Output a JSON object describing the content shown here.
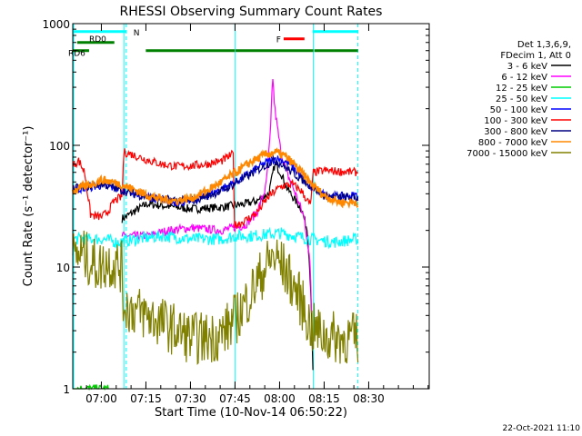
{
  "chart_data": {
    "type": "line",
    "title": "RHESSI Observing Summary Count Rates",
    "xlabel": "Start Time (10-Nov-14 06:50:22)",
    "ylabel": "Count Rate (s⁻¹ detector⁻¹)",
    "x_unit": "minutes since 06:50:22",
    "xlim": [
      0,
      120
    ],
    "ylim": [
      1,
      1000
    ],
    "yscale": "log",
    "x_ticks": [
      {
        "value": 9.63,
        "label": "07:00"
      },
      {
        "value": 24.63,
        "label": "07:15"
      },
      {
        "value": 39.63,
        "label": "07:30"
      },
      {
        "value": 54.63,
        "label": "07:45"
      },
      {
        "value": 69.63,
        "label": "08:00"
      },
      {
        "value": 84.63,
        "label": "08:15"
      },
      {
        "value": 99.63,
        "label": "08:30"
      }
    ],
    "y_ticks": [
      {
        "value": 1,
        "label": "1"
      },
      {
        "value": 10,
        "label": "10"
      },
      {
        "value": 100,
        "label": "100"
      },
      {
        "value": 1000,
        "label": "1000"
      }
    ],
    "legend_header": [
      "Det 1,3,6,9,",
      "FDecim 1, Att 0"
    ],
    "legend_position": "right",
    "grid": false,
    "series": [
      {
        "name": "3 - 6 keV",
        "color": "#000000",
        "points": [
          [
            16.6,
            25
          ],
          [
            18,
            26
          ],
          [
            20,
            28
          ],
          [
            25,
            33
          ],
          [
            30,
            32
          ],
          [
            40,
            30
          ],
          [
            50,
            31
          ],
          [
            58,
            33
          ],
          [
            62,
            35
          ],
          [
            66,
            40
          ],
          [
            68,
            70
          ],
          [
            70,
            60
          ],
          [
            72,
            45
          ],
          [
            74,
            38
          ],
          [
            77,
            30
          ],
          [
            79,
            20
          ],
          [
            80,
            8
          ],
          [
            81,
            1
          ]
        ]
      },
      {
        "name": "6 - 12 keV",
        "color": "#ff00ff",
        "points": [
          [
            16.6,
            18
          ],
          [
            20,
            18
          ],
          [
            25,
            18
          ],
          [
            32,
            20
          ],
          [
            40,
            21
          ],
          [
            50,
            20
          ],
          [
            58,
            22
          ],
          [
            62,
            28
          ],
          [
            65,
            45
          ],
          [
            66.5,
            120
          ],
          [
            67.3,
            380
          ],
          [
            68,
            200
          ],
          [
            70,
            90
          ],
          [
            72,
            60
          ],
          [
            75,
            40
          ],
          [
            78,
            25
          ],
          [
            80,
            10
          ],
          [
            80.5,
            3
          ]
        ]
      },
      {
        "name": "12 - 25 keV",
        "color": "#00cc00",
        "points": [
          [
            0,
            1
          ],
          [
            2,
            1
          ],
          [
            4,
            1
          ],
          [
            8,
            1
          ],
          [
            12,
            1
          ]
        ]
      },
      {
        "name": "25 - 50 keV",
        "color": "#00ffff",
        "points": [
          [
            0,
            17
          ],
          [
            5,
            17
          ],
          [
            10,
            17
          ],
          [
            15,
            16
          ],
          [
            22,
            17
          ],
          [
            30,
            18
          ],
          [
            40,
            17
          ],
          [
            50,
            17
          ],
          [
            55,
            18
          ],
          [
            60,
            18
          ],
          [
            70,
            19
          ],
          [
            80,
            17
          ],
          [
            88,
            16
          ],
          [
            96,
            17
          ]
        ]
      },
      {
        "name": "50 - 100 keV",
        "color": "#0000ff",
        "points": [
          [
            0,
            43
          ],
          [
            5,
            45
          ],
          [
            10,
            47
          ],
          [
            15,
            44
          ],
          [
            20,
            41
          ],
          [
            25,
            38
          ],
          [
            30,
            35
          ],
          [
            35,
            34
          ],
          [
            40,
            35
          ],
          [
            45,
            38
          ],
          [
            50,
            44
          ],
          [
            55,
            50
          ],
          [
            60,
            60
          ],
          [
            65,
            72
          ],
          [
            68,
            78
          ],
          [
            70,
            77
          ],
          [
            73,
            70
          ],
          [
            76,
            58
          ],
          [
            80,
            45
          ],
          [
            85,
            39
          ],
          [
            90,
            38
          ],
          [
            96,
            39
          ]
        ]
      },
      {
        "name": "100 - 300 keV",
        "color": "#ff0000",
        "points": [
          [
            0,
            68
          ],
          [
            2,
            75
          ],
          [
            4,
            60
          ],
          [
            6,
            27
          ],
          [
            8,
            26
          ],
          [
            10,
            26
          ],
          [
            12,
            29
          ],
          [
            14,
            35
          ],
          [
            16.6,
            38
          ],
          [
            17.2,
            88
          ],
          [
            20,
            84
          ],
          [
            25,
            76
          ],
          [
            30,
            70
          ],
          [
            35,
            67
          ],
          [
            40,
            68
          ],
          [
            45,
            70
          ],
          [
            50,
            74
          ],
          [
            54,
            85
          ],
          [
            54.5,
            22
          ],
          [
            58,
            24
          ],
          [
            62,
            28
          ],
          [
            66,
            38
          ],
          [
            70,
            46
          ],
          [
            74,
            48
          ],
          [
            77,
            42
          ],
          [
            80,
            32
          ],
          [
            81,
            60
          ],
          [
            85,
            62
          ],
          [
            90,
            61
          ],
          [
            96,
            60
          ]
        ]
      },
      {
        "name": "300 - 800 keV",
        "color": "#000080",
        "points": [
          [
            0,
            44
          ],
          [
            10,
            48
          ],
          [
            20,
            40
          ],
          [
            30,
            36
          ],
          [
            40,
            35
          ],
          [
            50,
            42
          ],
          [
            60,
            58
          ],
          [
            68,
            76
          ],
          [
            76,
            55
          ],
          [
            85,
            38
          ],
          [
            96,
            37
          ]
        ]
      },
      {
        "name": "800 - 7000 keV",
        "color": "#ff8800",
        "points": [
          [
            0,
            42
          ],
          [
            5,
            47
          ],
          [
            10,
            52
          ],
          [
            15,
            49
          ],
          [
            20,
            44
          ],
          [
            25,
            39
          ],
          [
            30,
            36
          ],
          [
            35,
            35
          ],
          [
            40,
            37
          ],
          [
            45,
            42
          ],
          [
            50,
            50
          ],
          [
            55,
            60
          ],
          [
            60,
            73
          ],
          [
            65,
            84
          ],
          [
            68,
            88
          ],
          [
            71,
            83
          ],
          [
            75,
            68
          ],
          [
            80,
            49
          ],
          [
            85,
            38
          ],
          [
            90,
            34
          ],
          [
            96,
            34
          ]
        ]
      },
      {
        "name": "7000 - 15000 keV",
        "color": "#808000",
        "points": [
          [
            0,
            12
          ],
          [
            3,
            13
          ],
          [
            6,
            11
          ],
          [
            9,
            10
          ],
          [
            12,
            11
          ],
          [
            16.6,
            10
          ],
          [
            17,
            5
          ],
          [
            20,
            4.5
          ],
          [
            25,
            4
          ],
          [
            30,
            3.5
          ],
          [
            35,
            3
          ],
          [
            40,
            2.6
          ],
          [
            45,
            2.6
          ],
          [
            50,
            2.8
          ],
          [
            55,
            3.8
          ],
          [
            58,
            5
          ],
          [
            62,
            7.5
          ],
          [
            65,
            10
          ],
          [
            67,
            12
          ],
          [
            69,
            11.5
          ],
          [
            72,
            9
          ],
          [
            75,
            6.5
          ],
          [
            78,
            4.5
          ],
          [
            80,
            3.2
          ],
          [
            85,
            2.7
          ],
          [
            90,
            2.6
          ],
          [
            96,
            2.6
          ]
        ]
      }
    ],
    "annotations": [
      {
        "label": "N",
        "color": "#00ffff",
        "type": "bar",
        "level": 860,
        "spans": [
          [
            0,
            18
          ],
          [
            80.7,
            96
          ]
        ]
      },
      {
        "label": "RD0",
        "color": "#008000",
        "type": "bar",
        "level": 700,
        "spans": [
          [
            1.5,
            14
          ]
        ]
      },
      {
        "label": "RD6",
        "color": "#008000",
        "type": "bar",
        "level": 600,
        "spans": [
          [
            0,
            5.5
          ],
          [
            24.6,
            54.6
          ],
          [
            54.8,
            81
          ],
          [
            81.3,
            96
          ]
        ]
      },
      {
        "label": "F",
        "color": "#ff0000",
        "type": "bar",
        "level": 750,
        "spans": [
          [
            71,
            78
          ]
        ]
      }
    ],
    "markers": [
      {
        "color": "#00ffff",
        "style": "dashed",
        "x": 18
      },
      {
        "color": "#00ffff",
        "style": "solid",
        "x": 0.3
      },
      {
        "color": "#00ffff",
        "style": "solid",
        "x": 17.2
      },
      {
        "color": "#00ffff",
        "style": "solid",
        "x": 54.6
      },
      {
        "color": "#00ffff",
        "style": "solid",
        "x": 81
      },
      {
        "color": "#00ffff",
        "style": "dashed",
        "x": 96
      }
    ]
  },
  "footer": {
    "timestamp": "22-Oct-2021 11:10"
  }
}
